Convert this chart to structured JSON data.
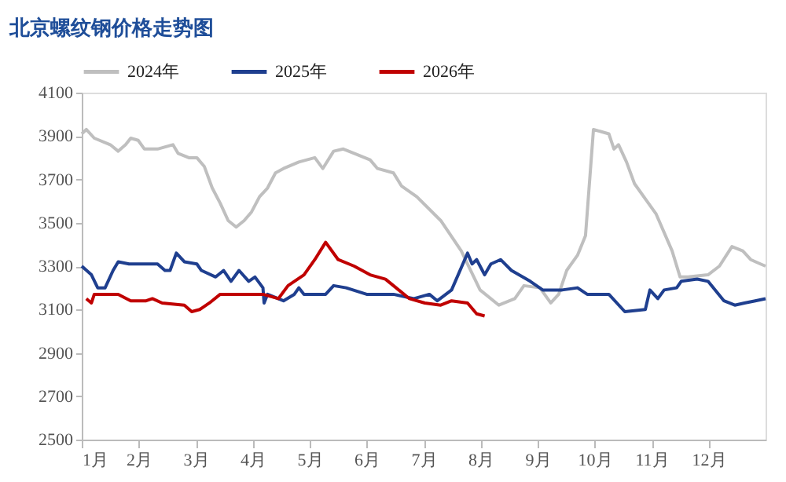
{
  "chart_data": {
    "type": "line",
    "title": "北京螺纹钢价格走势图",
    "legend": "top",
    "grid": false,
    "line_style": "solid",
    "marker": "none",
    "xlim": [
      1,
      13
    ],
    "xticks": [
      {
        "value": 1,
        "label": "1月"
      },
      {
        "value": 2,
        "label": "2月"
      },
      {
        "value": 3,
        "label": "3月"
      },
      {
        "value": 4,
        "label": "4月"
      },
      {
        "value": 5,
        "label": "5月"
      },
      {
        "value": 6,
        "label": "6月"
      },
      {
        "value": 7,
        "label": "7月"
      },
      {
        "value": 8,
        "label": "8月"
      },
      {
        "value": 9,
        "label": "9月"
      },
      {
        "value": 10,
        "label": "10月"
      },
      {
        "value": 11,
        "label": "11月"
      },
      {
        "value": 12,
        "label": "12月"
      }
    ],
    "ylim": [
      2500,
      4100
    ],
    "yticks": [
      2500,
      2700,
      2900,
      3100,
      3300,
      3500,
      3700,
      3900,
      4100
    ],
    "series": [
      {
        "name": "2024年",
        "color": "#bfbfbf",
        "x": [
          1.0,
          1.08,
          1.22,
          1.5,
          1.64,
          1.77,
          1.86,
          1.99,
          2.1,
          2.33,
          2.6,
          2.69,
          2.88,
          3.02,
          3.15,
          3.29,
          3.43,
          3.57,
          3.71,
          3.85,
          3.98,
          4.12,
          4.26,
          4.4,
          4.54,
          4.81,
          5.09,
          5.23,
          5.42,
          5.59,
          5.78,
          6.06,
          6.19,
          6.47,
          6.61,
          6.88,
          7.3,
          7.66,
          7.99,
          8.32,
          8.6,
          8.76,
          9.04,
          9.23,
          9.37,
          9.51,
          9.7,
          9.84,
          9.98,
          10.25,
          10.34,
          10.42,
          10.56,
          10.7,
          11.08,
          11.36,
          11.5,
          11.64,
          11.99,
          12.19,
          12.41,
          12.6,
          12.74,
          12.91,
          13.0
        ],
        "values": [
          3910,
          3930,
          3890,
          3860,
          3830,
          3860,
          3890,
          3880,
          3840,
          3840,
          3860,
          3820,
          3800,
          3800,
          3760,
          3660,
          3590,
          3510,
          3480,
          3510,
          3550,
          3620,
          3660,
          3730,
          3750,
          3780,
          3800,
          3750,
          3830,
          3840,
          3820,
          3790,
          3750,
          3730,
          3670,
          3620,
          3510,
          3370,
          3190,
          3120,
          3150,
          3210,
          3200,
          3130,
          3170,
          3280,
          3350,
          3440,
          3930,
          3910,
          3840,
          3860,
          3780,
          3680,
          3540,
          3370,
          3250,
          3250,
          3260,
          3300,
          3390,
          3370,
          3330,
          3310,
          3300
        ]
      },
      {
        "name": "2025年",
        "color": "#1f3f8f",
        "x": [
          1.0,
          1.17,
          1.28,
          1.41,
          1.55,
          1.64,
          1.83,
          2.33,
          2.46,
          2.55,
          2.66,
          2.8,
          3.02,
          3.1,
          3.35,
          3.49,
          3.62,
          3.76,
          3.93,
          4.04,
          4.18,
          4.2,
          4.26,
          4.54,
          4.73,
          4.81,
          4.9,
          5.28,
          5.42,
          5.64,
          6.0,
          6.19,
          6.41,
          6.47,
          6.83,
          7.1,
          7.24,
          7.49,
          7.77,
          7.85,
          7.93,
          8.07,
          8.18,
          8.35,
          8.54,
          8.87,
          9.09,
          9.43,
          9.7,
          9.87,
          10.25,
          10.53,
          10.89,
          10.97,
          11.11,
          11.22,
          11.44,
          11.52,
          11.8,
          11.99,
          12.27,
          12.46,
          12.63,
          12.82,
          13.0
        ],
        "values": [
          3300,
          3260,
          3200,
          3200,
          3280,
          3320,
          3310,
          3310,
          3280,
          3280,
          3360,
          3320,
          3310,
          3280,
          3250,
          3280,
          3230,
          3280,
          3230,
          3250,
          3200,
          3130,
          3170,
          3140,
          3170,
          3200,
          3170,
          3170,
          3210,
          3200,
          3170,
          3170,
          3170,
          3170,
          3150,
          3170,
          3140,
          3190,
          3360,
          3310,
          3330,
          3260,
          3310,
          3330,
          3280,
          3230,
          3190,
          3190,
          3200,
          3170,
          3170,
          3090,
          3100,
          3190,
          3150,
          3190,
          3200,
          3230,
          3240,
          3230,
          3140,
          3120,
          3130,
          3140,
          3150
        ]
      },
      {
        "name": "2026年",
        "color": "#c00000",
        "x": [
          1.08,
          1.17,
          1.22,
          1.41,
          1.64,
          1.86,
          2.13,
          2.24,
          2.41,
          2.8,
          2.93,
          3.07,
          3.24,
          3.43,
          3.9,
          4.18,
          4.45,
          4.62,
          4.9,
          5.09,
          5.28,
          5.5,
          5.78,
          6.06,
          6.33,
          6.47,
          6.75,
          7.02,
          7.3,
          7.49,
          7.77,
          7.93,
          8.07
        ],
        "values": [
          3150,
          3130,
          3170,
          3170,
          3170,
          3140,
          3140,
          3150,
          3130,
          3120,
          3090,
          3100,
          3130,
          3170,
          3170,
          3170,
          3150,
          3210,
          3260,
          3330,
          3410,
          3330,
          3300,
          3260,
          3240,
          3210,
          3150,
          3130,
          3120,
          3140,
          3130,
          3080,
          3070
        ]
      }
    ]
  }
}
